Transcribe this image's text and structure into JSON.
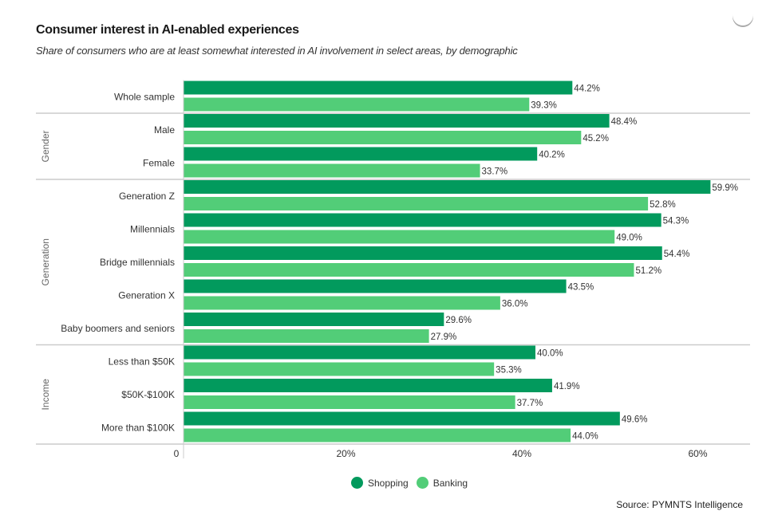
{
  "chart_data": {
    "type": "bar",
    "orientation": "horizontal",
    "title": "Consumer interest in AI-enabled experiences",
    "subtitle": "Share of consumers who are at least somewhat interested in AI involvement in select areas, by demographic",
    "categories": [
      "Whole sample",
      "Male",
      "Female",
      "Generation Z",
      "Millennials",
      "Bridge millennials",
      "Generation X",
      "Baby boomers and seniors",
      "Less than $50K",
      "$50K-$100K",
      "More than $100K"
    ],
    "groups": [
      {
        "name": "",
        "categories": [
          "Whole sample"
        ]
      },
      {
        "name": "Gender",
        "categories": [
          "Male",
          "Female"
        ]
      },
      {
        "name": "Generation",
        "categories": [
          "Generation Z",
          "Millennials",
          "Bridge millennials",
          "Generation X",
          "Baby boomers and seniors"
        ]
      },
      {
        "name": "Income",
        "categories": [
          "Less than $50K",
          "$50K-$100K",
          "More than $100K"
        ]
      }
    ],
    "series": [
      {
        "name": "Shopping",
        "color": "#029a5d",
        "values": [
          44.2,
          48.4,
          40.2,
          59.9,
          54.3,
          54.4,
          43.5,
          29.6,
          40.0,
          41.9,
          49.6
        ]
      },
      {
        "name": "Banking",
        "color": "#52cd78",
        "values": [
          39.3,
          45.2,
          33.7,
          52.8,
          49.0,
          51.2,
          36.0,
          27.9,
          35.3,
          37.7,
          44.0
        ]
      }
    ],
    "data_labels": {
      "Shopping": [
        "44.2%",
        "48.4%",
        "40.2%",
        "59.9%",
        "54.3%",
        "54.4%",
        "43.5%",
        "29.6%",
        "40.0%",
        "41.9%",
        "49.6%"
      ],
      "Banking": [
        "39.3%",
        "45.2%",
        "33.7%",
        "52.8%",
        "49.0%",
        "51.2%",
        "36.0%",
        "27.9%",
        "35.3%",
        "37.7%",
        "44.0%"
      ]
    },
    "x_ticks": [
      0,
      20,
      40,
      60
    ],
    "x_tick_labels": [
      "0",
      "20%",
      "40%",
      "60%"
    ],
    "xlim": [
      0,
      64.4
    ],
    "xlabel": "",
    "ylabel": "",
    "grid": false,
    "legend_position": "bottom-center"
  },
  "source": "Source: PYMNTS Intelligence"
}
